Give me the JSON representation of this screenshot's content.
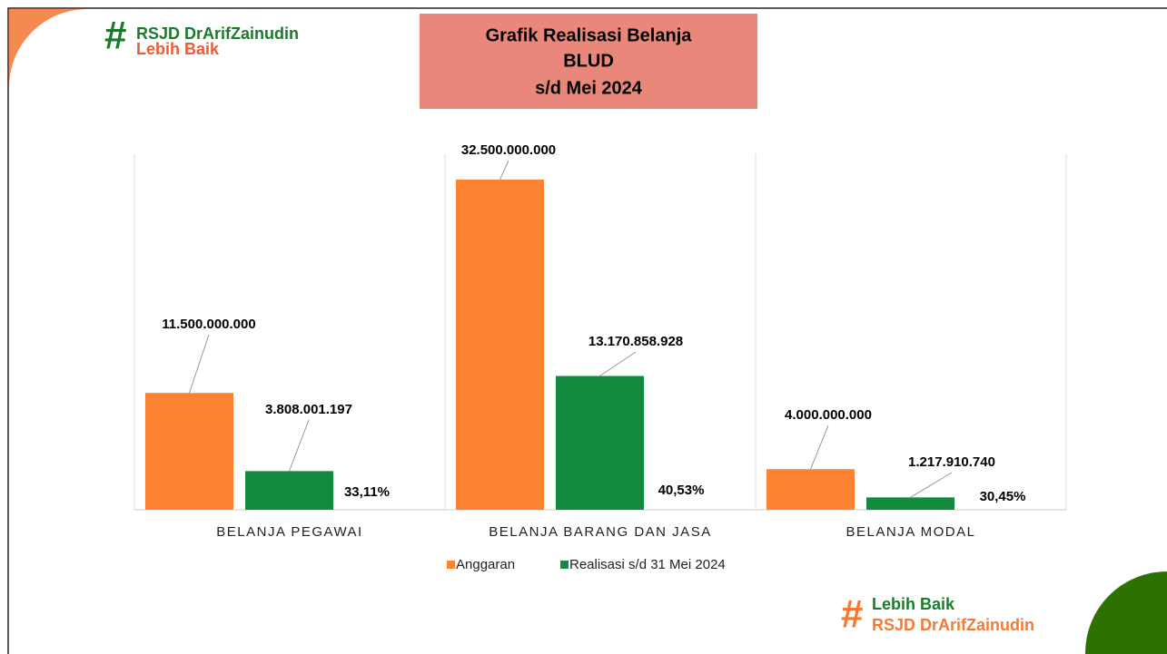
{
  "logo_top": {
    "line1": "RSJD DrArifZainudin",
    "line2": "Lebih Baik"
  },
  "logo_bottom": {
    "line1": "Lebih Baik",
    "line2": "RSJD DrArifZainudin"
  },
  "chart_data": {
    "type": "bar",
    "title": [
      "Grafik Realisasi Belanja",
      "BLUD",
      "s/d Mei 2024"
    ],
    "categories": [
      "BELANJA PEGAWAI",
      "BELANJA BARANG DAN JASA",
      "BELANJA MODAL"
    ],
    "series": [
      {
        "name": "Anggaran",
        "color": "#fd8332",
        "values": [
          11500000000,
          32500000000,
          4000000000
        ],
        "value_labels": [
          "11.500.000.000",
          "32.500.000.000",
          "4.000.000.000"
        ]
      },
      {
        "name": "Realisasi s/d 31 Mei 2024",
        "color": "#138a3e",
        "values": [
          3808001197,
          13170858928,
          1217910740
        ],
        "value_labels": [
          "3.808.001.197",
          "13.170.858.928",
          "1.217.910.740"
        ]
      }
    ],
    "annotations": [
      "33,11%",
      "40,53%",
      "30,45%"
    ],
    "ylim": [
      0,
      35000000000
    ],
    "legend": "bottom"
  }
}
